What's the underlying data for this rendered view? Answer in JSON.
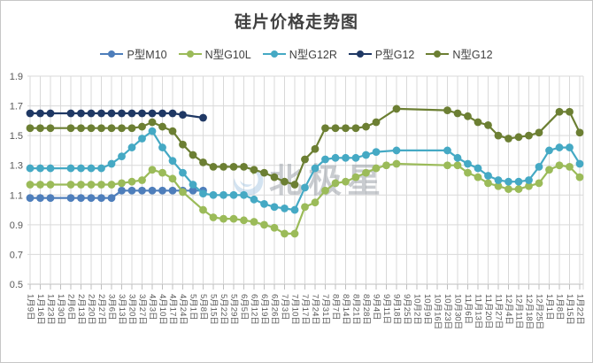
{
  "chart": {
    "watermark": {
      "text": "北极星",
      "text_color": "#949BA3",
      "logo_color": "#A9C9E4",
      "sparkle_color": "#7FBF4D",
      "opacity": 0.5
    },
    "colors": {
      "grid": "#D9D9D9",
      "axis_line": "#BFBFBF",
      "axis_text": "#595959",
      "title_text": "#404040",
      "border": "#C6C6C6",
      "background": "#FFFFFF"
    }
  },
  "chart_data": {
    "type": "line",
    "title": "硅片价格走势图",
    "xlabel": "",
    "ylabel": "",
    "legend_position": "top",
    "grid": true,
    "ylim": [
      0.5,
      1.9
    ],
    "ytick_step": 0.2,
    "ytick_labels": [
      "1.9",
      "1.7",
      "1.5",
      "1.3",
      "1.1",
      "0.9",
      "0.7",
      "0.5"
    ],
    "categories": [
      "1月9日",
      "1月16日",
      "1月23日",
      "1月30日",
      "2月6日",
      "2月13日",
      "2月20日",
      "2月27日",
      "3月6日",
      "3月13日",
      "3月20日",
      "3月27日",
      "4月3日",
      "4月10日",
      "4月17日",
      "4月24日",
      "5月1日",
      "5月8日",
      "5月15日",
      "5月22日",
      "5月29日",
      "6月5日",
      "6月12日",
      "6月19日",
      "6月26日",
      "7月3日",
      "7月10日",
      "7月17日",
      "7月24日",
      "7月31日",
      "8月7日",
      "8月14日",
      "8月21日",
      "8月28日",
      "9月4日",
      "9月11日",
      "9月18日",
      "9月25日",
      "10月2日",
      "10月9日",
      "10月16日",
      "10月23日",
      "10月30日",
      "11月6日",
      "11月13日",
      "11月20日",
      "11月27日",
      "12月4日",
      "12月11日",
      "12月18日",
      "12月25日",
      "1月1日",
      "1月8日",
      "1月15日",
      "1月22日"
    ],
    "series": [
      {
        "name": "P型M10",
        "color": "#4E7EBB",
        "values": [
          1.08,
          1.08,
          1.08,
          null,
          1.08,
          1.08,
          1.08,
          1.08,
          1.08,
          1.13,
          1.13,
          1.13,
          1.13,
          1.13,
          1.13,
          1.13,
          1.13,
          1.13,
          null,
          null,
          null,
          null,
          null,
          null,
          null,
          null,
          null,
          null,
          null,
          null,
          null,
          null,
          null,
          null,
          null,
          null,
          null,
          null,
          null,
          null,
          null,
          null,
          null,
          null,
          null,
          null,
          null,
          null,
          null,
          null,
          null,
          null,
          null,
          null,
          null
        ]
      },
      {
        "name": "N型G10L",
        "color": "#9BBB59",
        "values": [
          1.17,
          1.17,
          1.17,
          null,
          1.17,
          1.17,
          1.17,
          1.17,
          1.17,
          1.18,
          1.19,
          1.2,
          1.27,
          1.25,
          1.21,
          1.12,
          null,
          1.0,
          0.95,
          0.94,
          0.94,
          0.93,
          0.92,
          0.9,
          0.88,
          0.84,
          0.84,
          1.02,
          1.05,
          1.13,
          1.18,
          1.19,
          1.22,
          1.25,
          1.28,
          1.3,
          1.31,
          null,
          null,
          null,
          null,
          1.3,
          1.3,
          1.25,
          1.22,
          1.18,
          1.16,
          1.14,
          1.14,
          1.16,
          1.18,
          1.27,
          1.3,
          1.29,
          1.22
        ]
      },
      {
        "name": "N型G12R",
        "color": "#45A9C4",
        "values": [
          1.28,
          1.28,
          1.28,
          null,
          1.28,
          1.28,
          1.28,
          1.28,
          1.31,
          1.36,
          1.42,
          1.48,
          1.53,
          1.42,
          1.33,
          1.25,
          1.17,
          1.11,
          1.1,
          1.1,
          1.1,
          1.1,
          1.07,
          1.04,
          1.02,
          1.01,
          1.0,
          1.15,
          1.28,
          1.34,
          1.35,
          1.35,
          1.35,
          1.37,
          1.39,
          null,
          1.4,
          null,
          null,
          null,
          null,
          1.4,
          1.35,
          1.31,
          1.28,
          1.23,
          1.2,
          1.19,
          1.19,
          1.2,
          1.29,
          1.4,
          1.42,
          1.42,
          1.31
        ]
      },
      {
        "name": "P型G12",
        "color": "#1F3864",
        "values": [
          1.65,
          1.65,
          1.65,
          null,
          1.65,
          1.65,
          1.65,
          1.65,
          1.65,
          1.65,
          1.65,
          1.65,
          1.65,
          1.65,
          1.65,
          1.64,
          null,
          1.62,
          null,
          null,
          null,
          null,
          null,
          null,
          null,
          null,
          null,
          null,
          null,
          null,
          null,
          null,
          null,
          null,
          null,
          null,
          null,
          null,
          null,
          null,
          null,
          null,
          null,
          null,
          null,
          null,
          null,
          null,
          null,
          null,
          null,
          null,
          null,
          null,
          null
        ]
      },
      {
        "name": "N型G12",
        "color": "#6C7F33",
        "values": [
          1.55,
          1.55,
          1.55,
          null,
          1.55,
          1.55,
          1.55,
          1.55,
          1.55,
          1.55,
          1.55,
          1.56,
          1.59,
          1.56,
          1.53,
          1.44,
          1.37,
          1.32,
          1.29,
          1.29,
          1.29,
          1.29,
          1.27,
          1.25,
          1.22,
          1.19,
          1.17,
          1.34,
          1.41,
          1.55,
          1.55,
          1.55,
          1.55,
          1.56,
          1.59,
          null,
          1.68,
          null,
          null,
          null,
          null,
          1.67,
          1.65,
          1.63,
          1.59,
          1.57,
          1.5,
          1.48,
          1.49,
          1.5,
          1.52,
          null,
          1.66,
          1.66,
          1.52
        ]
      }
    ]
  }
}
